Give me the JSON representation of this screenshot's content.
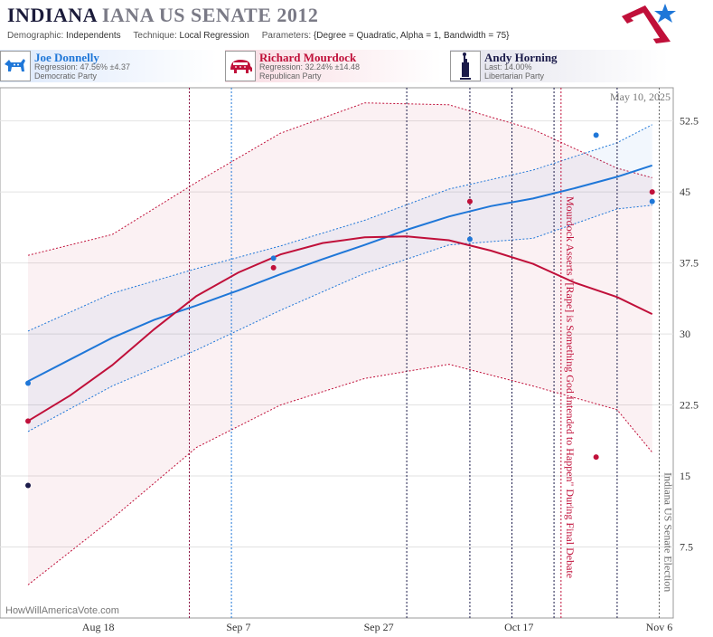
{
  "header": {
    "title_state": "INDIANA",
    "title_rest": "IANA US SENATE 2012",
    "demographic_label": "Demographic:",
    "demographic_value": "Independents",
    "technique_label": "Technique:",
    "technique_value": "Local Regression",
    "parameters_label": "Parameters:",
    "parameters_value": "{Degree = Quadratic, Alpha = 1, Bandwidth = 75}"
  },
  "candidates": [
    {
      "name": "Joe Donnelly",
      "stat": "Regression: 47.56% ±4.37",
      "party": "Democratic Party",
      "color": "#1f77d8",
      "icon": "donkey-icon"
    },
    {
      "name": "Richard Mourdock",
      "stat": "Regression: 32.24% ±14.48",
      "party": "Republican Party",
      "color": "#c0103a",
      "icon": "elephant-icon"
    },
    {
      "name": "Andy Horning",
      "stat": "Last: 14.00%",
      "party": "Libertarian Party",
      "color": "#1b1b4a",
      "icon": "liberty-statue-icon"
    }
  ],
  "chart_data": {
    "type": "line",
    "date_label": "May 10, 2025",
    "watermark": "HowWillAmericaVote.com",
    "x_ticks": [
      "Aug 18",
      "Sep 7",
      "Sep 27",
      "Oct 17",
      "Nov 6"
    ],
    "y_ticks": [
      "7.5",
      "15",
      "22.5",
      "30",
      "37.5",
      "45",
      "52.5"
    ],
    "ylim": [
      0,
      56
    ],
    "xlim": [
      "2012-08-04",
      "2012-11-08"
    ],
    "grid": true,
    "annotations": [
      {
        "text": "Mourdock Asserts \"[Rape] is Something God Intended to Happen\" During Final Debate",
        "date": "2012-10-23",
        "color": "#c0103a"
      },
      {
        "text": "Indiana US Senate Election",
        "date": "2012-11-06",
        "color": "#666666"
      }
    ],
    "event_lines": [
      {
        "date": "2012-08-31",
        "color": "#8a1040"
      },
      {
        "date": "2012-09-06",
        "color": "#1f77d8"
      },
      {
        "date": "2012-10-01",
        "color": "#1b1b4a"
      },
      {
        "date": "2012-10-10",
        "color": "#1b1b4a"
      },
      {
        "date": "2012-10-16",
        "color": "#1b1b4a"
      },
      {
        "date": "2012-10-22",
        "color": "#1b1b4a"
      },
      {
        "date": "2012-10-31",
        "color": "#1b1b4a"
      }
    ],
    "series": [
      {
        "name": "Joe Donnelly",
        "color": "#1f77d8",
        "points": [
          [
            "2012-08-08",
            24.8
          ],
          [
            "2012-09-12",
            38.0
          ],
          [
            "2012-10-10",
            40.0
          ],
          [
            "2012-10-28",
            51.0
          ],
          [
            "2012-11-05",
            44.0
          ]
        ],
        "fit": [
          [
            "2012-08-08",
            25.0
          ],
          [
            "2012-08-14",
            27.3
          ],
          [
            "2012-08-20",
            29.6
          ],
          [
            "2012-08-26",
            31.5
          ],
          [
            "2012-09-01",
            33.0
          ],
          [
            "2012-09-07",
            34.6
          ],
          [
            "2012-09-13",
            36.3
          ],
          [
            "2012-09-19",
            37.9
          ],
          [
            "2012-09-25",
            39.4
          ],
          [
            "2012-10-01",
            41.0
          ],
          [
            "2012-10-07",
            42.4
          ],
          [
            "2012-10-13",
            43.5
          ],
          [
            "2012-10-19",
            44.3
          ],
          [
            "2012-10-25",
            45.4
          ],
          [
            "2012-10-31",
            46.6
          ],
          [
            "2012-11-05",
            47.8
          ]
        ],
        "band_upper": [
          [
            "2012-08-08",
            30.3
          ],
          [
            "2012-08-20",
            34.3
          ],
          [
            "2012-09-01",
            36.9
          ],
          [
            "2012-09-13",
            39.3
          ],
          [
            "2012-09-25",
            42.0
          ],
          [
            "2012-10-07",
            45.3
          ],
          [
            "2012-10-19",
            47.3
          ],
          [
            "2012-10-31",
            50.2
          ],
          [
            "2012-11-05",
            52.1
          ]
        ],
        "band_lower": [
          [
            "2012-08-08",
            19.7
          ],
          [
            "2012-08-20",
            24.5
          ],
          [
            "2012-09-01",
            28.3
          ],
          [
            "2012-09-13",
            32.5
          ],
          [
            "2012-09-25",
            36.4
          ],
          [
            "2012-10-07",
            39.4
          ],
          [
            "2012-10-19",
            40.1
          ],
          [
            "2012-10-31",
            43.2
          ],
          [
            "2012-11-05",
            43.6
          ]
        ]
      },
      {
        "name": "Richard Mourdock",
        "color": "#c0103a",
        "points": [
          [
            "2012-08-08",
            20.8
          ],
          [
            "2012-09-12",
            37.0
          ],
          [
            "2012-10-10",
            44.0
          ],
          [
            "2012-10-28",
            17.0
          ],
          [
            "2012-11-05",
            45.0
          ]
        ],
        "fit": [
          [
            "2012-08-08",
            20.8
          ],
          [
            "2012-08-14",
            23.5
          ],
          [
            "2012-08-20",
            26.7
          ],
          [
            "2012-08-26",
            30.5
          ],
          [
            "2012-09-01",
            34.0
          ],
          [
            "2012-09-07",
            36.5
          ],
          [
            "2012-09-13",
            38.4
          ],
          [
            "2012-09-19",
            39.6
          ],
          [
            "2012-09-25",
            40.2
          ],
          [
            "2012-10-01",
            40.3
          ],
          [
            "2012-10-07",
            39.9
          ],
          [
            "2012-10-13",
            38.8
          ],
          [
            "2012-10-19",
            37.4
          ],
          [
            "2012-10-25",
            35.4
          ],
          [
            "2012-10-31",
            33.9
          ],
          [
            "2012-11-05",
            32.1
          ]
        ],
        "band_upper": [
          [
            "2012-08-08",
            38.3
          ],
          [
            "2012-08-20",
            40.5
          ],
          [
            "2012-09-01",
            46.0
          ],
          [
            "2012-09-13",
            51.2
          ],
          [
            "2012-09-25",
            54.4
          ],
          [
            "2012-10-07",
            54.2
          ],
          [
            "2012-10-19",
            51.6
          ],
          [
            "2012-10-31",
            47.5
          ],
          [
            "2012-11-05",
            46.5
          ]
        ],
        "band_lower": [
          [
            "2012-08-08",
            3.5
          ],
          [
            "2012-08-20",
            10.5
          ],
          [
            "2012-09-01",
            18.0
          ],
          [
            "2012-09-13",
            22.5
          ],
          [
            "2012-09-25",
            25.3
          ],
          [
            "2012-10-07",
            26.8
          ],
          [
            "2012-10-19",
            24.5
          ],
          [
            "2012-10-31",
            22.0
          ],
          [
            "2012-11-05",
            17.5
          ]
        ]
      },
      {
        "name": "Andy Horning",
        "color": "#1b1b4a",
        "points": [
          [
            "2012-08-08",
            14.0
          ]
        ]
      }
    ]
  }
}
